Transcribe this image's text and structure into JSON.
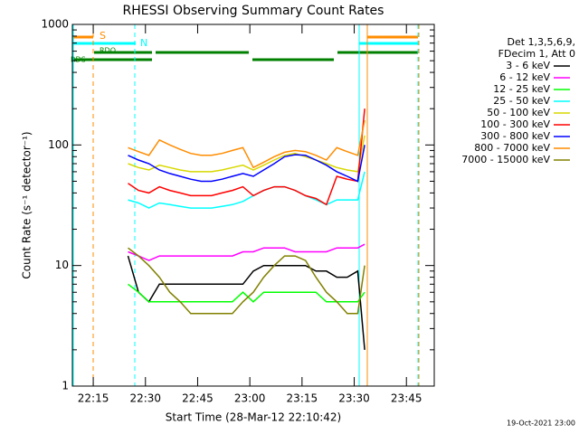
{
  "chart_data": {
    "type": "line",
    "title": "RHESSI Observing Summary Count Rates",
    "x_label": "Start Time (28-Mar-12 22:10:42)",
    "y_label": "Count Rate (s⁻¹ detector⁻¹)",
    "legend_title": [
      "Det 1,3,5,6,9,",
      "FDecim 1, Att 0"
    ],
    "footer": "19-Oct-2021 23:00",
    "annotations": [
      "S",
      "N",
      "RDO",
      "RDS"
    ],
    "yscale": "log",
    "ylim": [
      1,
      1000
    ],
    "yticks": [
      1,
      10,
      100,
      1000
    ],
    "xlim": [
      "22:09",
      "23:53"
    ],
    "xticks": [
      "22:15",
      "22:30",
      "22:45",
      "23:00",
      "23:15",
      "23:30",
      "23:45"
    ],
    "x": [
      "22:25",
      "22:28",
      "22:31",
      "22:34",
      "22:37",
      "22:40",
      "22:43",
      "22:46",
      "22:49",
      "22:52",
      "22:55",
      "22:58",
      "23:01",
      "23:04",
      "23:07",
      "23:10",
      "23:13",
      "23:16",
      "23:19",
      "23:22",
      "23:25",
      "23:28",
      "23:31",
      "23:33"
    ],
    "series": [
      {
        "name": "3 - 6 keV",
        "color": "#000000",
        "values": [
          12,
          6,
          5,
          7,
          7,
          7,
          7,
          7,
          7,
          7,
          7,
          7,
          9,
          10,
          10,
          10,
          10,
          10,
          9,
          9,
          8,
          8,
          9,
          2
        ]
      },
      {
        "name": "6 - 12 keV",
        "color": "#ff00ff",
        "values": [
          13,
          12,
          11,
          12,
          12,
          12,
          12,
          12,
          12,
          12,
          12,
          13,
          13,
          14,
          14,
          14,
          13,
          13,
          13,
          13,
          14,
          14,
          14,
          15
        ]
      },
      {
        "name": "12 - 25 keV",
        "color": "#00ff00",
        "values": [
          7,
          6,
          5,
          5,
          5,
          5,
          5,
          5,
          5,
          5,
          5,
          6,
          5,
          6,
          6,
          6,
          6,
          6,
          6,
          5,
          5,
          5,
          5,
          6
        ]
      },
      {
        "name": "25 - 50 keV",
        "color": "#00ffff",
        "values": [
          35,
          33,
          30,
          33,
          32,
          31,
          30,
          30,
          30,
          31,
          32,
          34,
          38,
          42,
          45,
          45,
          42,
          38,
          35,
          32,
          35,
          35,
          35,
          60
        ]
      },
      {
        "name": "50 - 100 keV",
        "color": "#d8d800",
        "values": [
          70,
          65,
          62,
          68,
          65,
          62,
          60,
          60,
          60,
          62,
          65,
          68,
          62,
          68,
          75,
          82,
          85,
          80,
          75,
          70,
          65,
          62,
          60,
          120
        ]
      },
      {
        "name": "100 - 300 keV",
        "color": "#ff0000",
        "values": [
          48,
          42,
          40,
          45,
          42,
          40,
          38,
          38,
          38,
          40,
          42,
          45,
          38,
          42,
          45,
          45,
          42,
          38,
          36,
          32,
          55,
          52,
          50,
          200
        ]
      },
      {
        "name": "300 - 800 keV",
        "color": "#0000ff",
        "values": [
          82,
          75,
          70,
          62,
          58,
          55,
          52,
          50,
          50,
          52,
          55,
          58,
          55,
          62,
          70,
          80,
          83,
          82,
          75,
          68,
          60,
          55,
          50,
          100
        ]
      },
      {
        "name": "800 - 7000 keV",
        "color": "#ff8c00",
        "values": [
          95,
          88,
          82,
          110,
          100,
          92,
          85,
          82,
          82,
          85,
          90,
          95,
          65,
          72,
          80,
          87,
          90,
          88,
          82,
          75,
          95,
          88,
          82,
          160
        ]
      },
      {
        "name": "7000 - 15000 keV",
        "color": "#808000",
        "values": [
          14,
          12,
          10,
          8,
          6,
          5,
          4,
          4,
          4,
          4,
          4,
          5,
          6,
          8,
          10,
          12,
          12,
          11,
          8,
          6,
          5,
          4,
          4,
          10
        ]
      }
    ]
  }
}
